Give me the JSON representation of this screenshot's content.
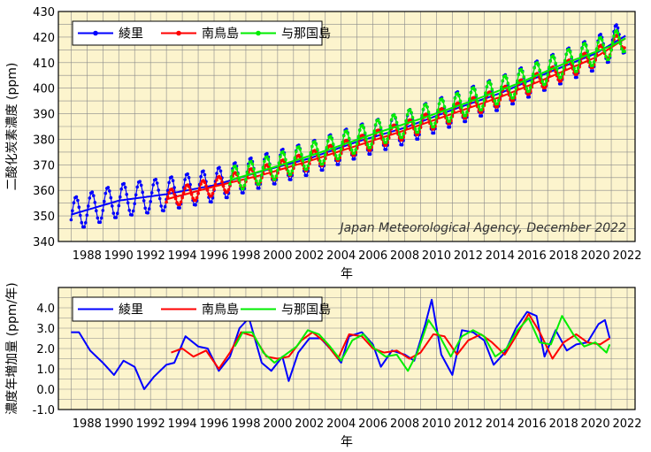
{
  "chart_data": [
    {
      "type": "line",
      "title": "",
      "ylabel": "二酸化炭素濃度 (ppm)",
      "xlabel": "年",
      "xlim": [
        1986.2,
        2022.5
      ],
      "ylim": [
        340,
        430
      ],
      "yticks": [
        340,
        350,
        360,
        370,
        380,
        390,
        400,
        410,
        420,
        430
      ],
      "xticks": [
        1988,
        1990,
        1992,
        1994,
        1996,
        1998,
        2000,
        2002,
        2004,
        2006,
        2008,
        2010,
        2012,
        2014,
        2016,
        2018,
        2020,
        2022
      ],
      "xtick_labels": [
        "1988",
        "1990",
        "1992",
        "1994",
        "1996",
        "1998",
        "2000",
        "2002",
        "2004",
        "2006",
        "2008",
        "2010",
        "2012",
        "2014",
        "2016",
        "2018",
        "2020",
        "2022"
      ],
      "grid": true,
      "legend": "top-left",
      "annotation": "Japan Meteorological Agency, December 2022",
      "series": [
        {
          "name": "綾里",
          "color": "#0000ff",
          "x": [
            1987.0,
            1990.0,
            1993.0,
            1996.0,
            1999.0,
            2002.0,
            2005.0,
            2008.0,
            2011.0,
            2014.0,
            2017.0,
            2020.0,
            2021.9
          ],
          "trend": [
            350.5,
            356.0,
            358.5,
            362.0,
            367.5,
            372.5,
            379.0,
            384.5,
            391.5,
            398.0,
            406.0,
            413.5,
            420.5
          ],
          "seasonal_amplitude": 6.5,
          "peak_phase": 0.3
        },
        {
          "name": "南鳥島",
          "color": "#ff0000",
          "x": [
            1993.0,
            1996.0,
            1999.0,
            2002.0,
            2005.0,
            2008.0,
            2011.0,
            2014.0,
            2017.0,
            2020.0,
            2021.9
          ],
          "trend": [
            356.5,
            361.5,
            366.0,
            371.5,
            377.5,
            383.5,
            390.0,
            396.5,
            404.0,
            412.0,
            419.5
          ],
          "seasonal_amplitude": 3.5,
          "peak_phase": 0.3
        },
        {
          "name": "与那国島",
          "color": "#00ee00",
          "x": [
            1997.0,
            2000.0,
            2003.0,
            2006.0,
            2009.0,
            2012.0,
            2015.0,
            2018.0,
            2021.0,
            2021.9
          ],
          "trend": [
            364.0,
            369.5,
            375.5,
            382.0,
            388.0,
            394.5,
            401.5,
            409.5,
            416.5,
            419.5
          ],
          "seasonal_amplitude": 5.0,
          "peak_phase": 0.3
        }
      ]
    },
    {
      "type": "line",
      "title": "",
      "ylabel": "濃度年増加量 (ppm/年)",
      "xlabel": "年",
      "xlim": [
        1986.2,
        2022.5
      ],
      "ylim": [
        -1.0,
        5.0
      ],
      "yticks": [
        -1.0,
        0.0,
        1.0,
        2.0,
        3.0,
        4.0
      ],
      "ytick_labels": [
        "-1.0",
        "0.0",
        "1.0",
        "2.0",
        "3.0",
        "4.0"
      ],
      "xticks": [
        1988,
        1990,
        1992,
        1994,
        1996,
        1998,
        2000,
        2002,
        2004,
        2006,
        2008,
        2010,
        2012,
        2014,
        2016,
        2018,
        2020,
        2022
      ],
      "xtick_labels": [
        "1988",
        "1990",
        "1992",
        "1994",
        "1996",
        "1998",
        "2000",
        "2002",
        "2004",
        "2006",
        "2008",
        "2010",
        "2012",
        "2014",
        "2016",
        "2018",
        "2020",
        "2022"
      ],
      "grid": true,
      "legend": "top-left",
      "series": [
        {
          "name": "綾里",
          "color": "#0000ff",
          "x": [
            1987.0,
            1987.5,
            1988.2,
            1989.0,
            1989.7,
            1990.3,
            1991.0,
            1991.6,
            1992.2,
            1993.0,
            1993.5,
            1994.2,
            1995.0,
            1995.6,
            1996.3,
            1997.0,
            1997.6,
            1998.2,
            1999.0,
            1999.6,
            2000.3,
            2000.7,
            2001.3,
            2002.0,
            2002.7,
            2003.3,
            2004.0,
            2004.5,
            2005.3,
            2006.0,
            2006.5,
            2007.2,
            2008.0,
            2008.6,
            2009.3,
            2009.7,
            2010.3,
            2011.0,
            2011.6,
            2012.3,
            2013.0,
            2013.6,
            2014.3,
            2015.0,
            2015.7,
            2016.3,
            2016.8,
            2017.5,
            2018.2,
            2018.8,
            2019.5,
            2020.2,
            2020.6,
            2020.9
          ],
          "values": [
            2.8,
            2.8,
            1.9,
            1.3,
            0.7,
            1.4,
            1.1,
            0.0,
            0.6,
            1.2,
            1.3,
            2.6,
            2.1,
            2.0,
            0.9,
            1.6,
            3.0,
            3.5,
            1.3,
            0.9,
            1.6,
            0.4,
            1.8,
            2.5,
            2.5,
            2.0,
            1.3,
            2.6,
            2.8,
            2.2,
            1.1,
            1.9,
            1.7,
            1.4,
            3.2,
            4.4,
            1.7,
            0.7,
            2.9,
            2.8,
            2.4,
            1.2,
            1.8,
            3.0,
            3.8,
            3.6,
            1.6,
            2.9,
            1.9,
            2.2,
            2.3,
            3.2,
            3.4,
            2.5
          ]
        },
        {
          "name": "南鳥島",
          "color": "#ff0000",
          "x": [
            1993.3,
            1994.0,
            1994.7,
            1995.5,
            1996.3,
            1997.0,
            1997.7,
            1998.5,
            1999.3,
            2000.0,
            2000.7,
            2001.5,
            2002.2,
            2003.0,
            2003.8,
            2004.5,
            2005.3,
            2006.0,
            2006.7,
            2007.5,
            2008.3,
            2009.0,
            2009.8,
            2010.5,
            2011.3,
            2012.0,
            2012.8,
            2013.5,
            2014.3,
            2015.0,
            2015.8,
            2016.5,
            2017.3,
            2018.0,
            2018.8,
            2019.5,
            2020.3,
            2020.9
          ],
          "values": [
            1.8,
            2.0,
            1.6,
            1.9,
            1.0,
            1.8,
            2.8,
            2.6,
            1.6,
            1.5,
            1.6,
            2.4,
            2.8,
            2.3,
            1.5,
            2.7,
            2.6,
            2.0,
            1.8,
            1.9,
            1.5,
            1.8,
            2.7,
            2.6,
            1.7,
            2.4,
            2.7,
            2.3,
            1.7,
            2.6,
            3.7,
            2.8,
            1.5,
            2.3,
            2.7,
            2.3,
            2.2,
            2.5
          ]
        },
        {
          "name": "与那国島",
          "color": "#00ee00",
          "x": [
            1997.3,
            1997.8,
            1998.4,
            1999.1,
            1999.8,
            2000.5,
            2001.2,
            2001.9,
            2002.6,
            2003.3,
            2004.0,
            2004.7,
            2005.4,
            2006.1,
            2006.8,
            2007.5,
            2008.2,
            2008.8,
            2009.5,
            2010.2,
            2010.9,
            2011.6,
            2012.3,
            2013.0,
            2013.7,
            2014.4,
            2015.1,
            2015.8,
            2016.5,
            2017.2,
            2017.9,
            2018.6,
            2019.3,
            2020.0,
            2020.7,
            2020.9
          ],
          "values": [
            2.1,
            2.8,
            2.8,
            1.8,
            1.3,
            1.7,
            2.1,
            2.9,
            2.7,
            2.1,
            1.4,
            2.4,
            2.7,
            2.0,
            1.6,
            1.7,
            0.9,
            1.8,
            3.4,
            2.6,
            1.6,
            2.6,
            2.9,
            2.6,
            1.6,
            2.0,
            2.9,
            3.5,
            2.3,
            2.2,
            3.6,
            2.7,
            2.1,
            2.3,
            1.8,
            2.2
          ]
        }
      ]
    }
  ]
}
